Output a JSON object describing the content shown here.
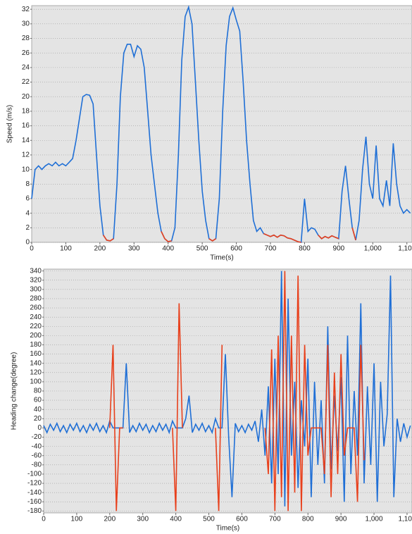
{
  "chart_data": [
    {
      "type": "line",
      "y_label": "Speed (m/s)",
      "x_label": "Time(s)",
      "x": [
        0,
        10,
        20,
        30,
        40,
        50,
        60,
        70,
        80,
        90,
        100,
        110,
        120,
        130,
        140,
        150,
        160,
        170,
        180,
        190,
        200,
        210,
        220,
        230,
        240,
        250,
        260,
        270,
        280,
        290,
        300,
        310,
        320,
        330,
        340,
        350,
        360,
        370,
        380,
        390,
        400,
        410,
        420,
        430,
        440,
        450,
        460,
        470,
        480,
        490,
        500,
        510,
        520,
        530,
        540,
        550,
        560,
        570,
        580,
        590,
        600,
        610,
        620,
        630,
        640,
        650,
        660,
        670,
        680,
        690,
        700,
        710,
        720,
        730,
        740,
        750,
        760,
        770,
        780,
        790,
        800,
        810,
        820,
        830,
        840,
        850,
        860,
        870,
        880,
        890,
        900,
        910,
        920,
        930,
        940,
        950,
        960,
        970,
        980,
        990,
        1000,
        1010,
        1020,
        1030,
        1040,
        1050,
        1060,
        1070,
        1080,
        1090,
        1100,
        1110
      ],
      "series": [
        {
          "color": "#1f6fd6",
          "values": [
            6,
            10,
            10.5,
            10,
            10.5,
            10.8,
            10.5,
            11,
            10.5,
            10.8,
            10.5,
            11,
            11.5,
            14,
            17,
            20,
            20.3,
            20.2,
            19,
            12,
            5,
            1,
            0.3,
            0.2,
            0.5,
            8,
            20,
            26,
            27.2,
            27.2,
            25.5,
            27,
            26.5,
            24,
            18,
            12,
            8,
            4,
            1.5,
            0.5,
            0.1,
            0.2,
            2,
            12,
            25,
            31,
            32.3,
            30,
            22,
            14,
            7,
            3,
            0.5,
            0.2,
            0.5,
            6,
            18,
            27,
            31,
            32.2,
            30.5,
            29,
            22,
            14,
            8,
            3,
            1.5,
            2,
            1.2,
            1,
            0.8,
            1,
            0.7,
            1,
            0.9,
            0.6,
            0.5,
            0.3,
            0.1,
            0,
            6,
            1.5,
            2,
            1.8,
            1,
            0.5,
            0.8,
            0.6,
            0.9,
            0.7,
            0.5,
            7,
            10.5,
            6,
            2,
            0.3,
            3,
            10,
            14.5,
            8,
            6,
            13.3,
            6,
            5,
            8.5,
            5,
            13.6,
            8,
            5,
            4,
            4.5,
            4
          ]
        },
        {
          "color": "#e8401c",
          "values": [
            null,
            null,
            null,
            null,
            null,
            null,
            null,
            null,
            null,
            null,
            null,
            null,
            null,
            null,
            null,
            null,
            null,
            null,
            null,
            null,
            null,
            1,
            0.3,
            0.2,
            0.5,
            null,
            null,
            null,
            null,
            null,
            null,
            null,
            null,
            null,
            null,
            null,
            null,
            null,
            1.5,
            0.5,
            0.1,
            0.2,
            null,
            null,
            null,
            null,
            null,
            null,
            null,
            null,
            null,
            null,
            0.5,
            0.2,
            0.5,
            null,
            null,
            null,
            null,
            null,
            null,
            null,
            null,
            null,
            null,
            null,
            null,
            null,
            1.2,
            1,
            0.8,
            1,
            0.7,
            1,
            0.9,
            0.6,
            0.5,
            0.3,
            0.1,
            0,
            null,
            null,
            null,
            null,
            1,
            0.5,
            0.8,
            0.6,
            0.9,
            0.7,
            0.5,
            null,
            null,
            null,
            2,
            0.3,
            null,
            null,
            null,
            null,
            null,
            null,
            null,
            null,
            null,
            null,
            null,
            null,
            null,
            null,
            null,
            null
          ]
        }
      ],
      "xlim": [
        0,
        1115
      ],
      "xticks": [
        0,
        100,
        200,
        300,
        400,
        500,
        600,
        700,
        800,
        900,
        {
          "value": 1000,
          "label": "1,000"
        },
        {
          "value": 1100,
          "label": "1,100"
        }
      ],
      "ylim": [
        0,
        32.5
      ],
      "yticks": [
        0,
        2,
        4,
        6,
        8,
        10,
        12,
        14,
        16,
        18,
        20,
        22,
        24,
        26,
        28,
        30,
        32
      ],
      "grid": true
    },
    {
      "type": "line",
      "y_label": "Heading change(degree)",
      "x_label": "Time(s)",
      "x": [
        0,
        10,
        20,
        30,
        40,
        50,
        60,
        70,
        80,
        90,
        100,
        110,
        120,
        130,
        140,
        150,
        160,
        170,
        180,
        190,
        200,
        210,
        220,
        230,
        240,
        250,
        260,
        270,
        280,
        290,
        300,
        310,
        320,
        330,
        340,
        350,
        360,
        370,
        380,
        390,
        400,
        410,
        420,
        430,
        440,
        450,
        460,
        470,
        480,
        490,
        500,
        510,
        520,
        530,
        540,
        550,
        560,
        570,
        580,
        590,
        600,
        610,
        620,
        630,
        640,
        650,
        660,
        670,
        680,
        690,
        700,
        710,
        720,
        730,
        740,
        750,
        760,
        770,
        780,
        790,
        800,
        810,
        820,
        830,
        840,
        850,
        860,
        870,
        880,
        890,
        900,
        910,
        920,
        930,
        940,
        950,
        960,
        970,
        980,
        990,
        1000,
        1010,
        1020,
        1030,
        1040,
        1050,
        1060,
        1070,
        1080,
        1090,
        1100,
        1110
      ],
      "series": [
        {
          "color": "#1f6fd6",
          "values": [
            5,
            -10,
            8,
            -5,
            10,
            -8,
            5,
            -10,
            8,
            -5,
            10,
            -8,
            5,
            -10,
            8,
            -5,
            10,
            -8,
            5,
            -10,
            15,
            0,
            0,
            0,
            0,
            140,
            -10,
            5,
            -8,
            10,
            -5,
            8,
            -10,
            5,
            -8,
            10,
            -5,
            8,
            -10,
            15,
            0,
            0,
            0,
            20,
            70,
            -10,
            8,
            -5,
            10,
            -8,
            5,
            -10,
            20,
            0,
            0,
            160,
            -20,
            -150,
            10,
            -8,
            5,
            -10,
            8,
            -5,
            15,
            -30,
            40,
            -60,
            90,
            -120,
            150,
            -100,
            340,
            -170,
            280,
            -60,
            100,
            -130,
            60,
            -40,
            150,
            -150,
            100,
            -80,
            60,
            -120,
            220,
            -90,
            70,
            -50,
            110,
            -160,
            200,
            -100,
            80,
            -60,
            270,
            -120,
            90,
            -80,
            140,
            -160,
            100,
            -40,
            30,
            330,
            -150,
            20,
            -30,
            10,
            -20,
            5
          ]
        },
        {
          "color": "#e8401c",
          "values": [
            null,
            null,
            null,
            null,
            null,
            null,
            null,
            null,
            null,
            null,
            null,
            null,
            null,
            null,
            null,
            null,
            null,
            null,
            null,
            null,
            0,
            180,
            -180,
            0,
            0,
            null,
            null,
            null,
            null,
            null,
            null,
            null,
            null,
            null,
            null,
            null,
            null,
            null,
            null,
            0,
            -180,
            270,
            0,
            null,
            null,
            null,
            null,
            null,
            null,
            null,
            null,
            null,
            0,
            -180,
            180,
            null,
            null,
            null,
            null,
            null,
            null,
            null,
            null,
            null,
            null,
            null,
            null,
            0,
            -100,
            170,
            -180,
            200,
            -150,
            340,
            -180,
            200,
            -140,
            330,
            -180,
            180,
            -60,
            0,
            0,
            0,
            0,
            -100,
            180,
            -150,
            120,
            -100,
            160,
            -60,
            0,
            0,
            0,
            -160,
            180,
            -70,
            null,
            null,
            null,
            null,
            null,
            null,
            null,
            null,
            null,
            null,
            null,
            null,
            null,
            null
          ]
        }
      ],
      "xlim": [
        0,
        1115
      ],
      "xticks": [
        0,
        100,
        200,
        300,
        400,
        500,
        600,
        700,
        800,
        900,
        {
          "value": 1000,
          "label": "1,000"
        },
        {
          "value": 1100,
          "label": "1,100"
        }
      ],
      "ylim": [
        -184,
        344
      ],
      "yticks": [
        -180,
        -160,
        -140,
        -120,
        -100,
        -80,
        -60,
        -40,
        -20,
        0,
        20,
        40,
        60,
        80,
        100,
        120,
        140,
        160,
        180,
        200,
        220,
        240,
        260,
        280,
        300,
        320,
        340
      ],
      "grid": true
    }
  ]
}
